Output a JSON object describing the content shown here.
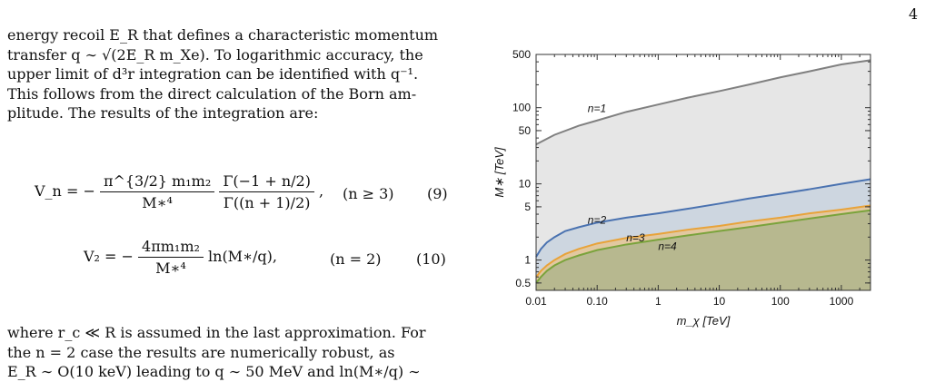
{
  "page_number": "4",
  "text": {
    "lines": [
      "energy recoil E_R that defines a characteristic momentum",
      "transfer q ∼ √(2E_R m_Xe). To logarithmic accuracy, the",
      "upper limit of d³r integration can be identified with q⁻¹.",
      "This follows from the direct calculation of the Born am-",
      "plitude. The results of the integration are:"
    ],
    "bottom_lines": [
      "where r_c ≪ R is assumed in the last approximation. For",
      "the n = 2 case the results are numerically robust, as",
      "E_R ∼ O(10 keV) leading to q ∼ 50 MeV and ln(M∗/q) ∼"
    ]
  },
  "equations": [
    {
      "lhs": "V_n = −",
      "frac1_num": "π^{3/2} m₁m₂",
      "frac1_den": "M∗⁴",
      "frac2_num": "Γ(−1 + n/2)",
      "frac2_den": "Γ((n + 1)/2)",
      "condition": "(n ≥ 3)",
      "number": "(9)"
    },
    {
      "lhs": "V₂ = −",
      "frac1_num": "4πm₁m₂",
      "frac1_den": "M∗⁴",
      "tail": "ln(M∗/q),",
      "condition": "(n = 2)",
      "number": "(10)"
    }
  ],
  "chart_data": {
    "type": "line",
    "xscale": "log",
    "yscale": "log",
    "xlabel": "m_χ [TeV]",
    "ylabel": "M∗ [TeV]",
    "xlim": [
      0.01,
      3000
    ],
    "ylim": [
      0.4,
      500
    ],
    "xticks": [
      "0.01",
      "0.10",
      "1",
      "10",
      "100",
      "1000"
    ],
    "yticks": [
      "0.5",
      "1",
      "5",
      "10",
      "50",
      "100",
      "500"
    ],
    "series": [
      {
        "name": "n=1",
        "color": "#808080",
        "fill": "#e6e6e6",
        "x": [
          0.01,
          0.02,
          0.05,
          0.1,
          0.3,
          1,
          3,
          10,
          30,
          100,
          300,
          1000,
          3000
        ],
        "y": [
          33,
          44,
          58,
          68,
          88,
          110,
          135,
          165,
          200,
          250,
          300,
          370,
          420
        ]
      },
      {
        "name": "n=2",
        "color": "#4a72b0",
        "fill": "#cdd6e0",
        "x": [
          0.01,
          0.012,
          0.015,
          0.02,
          0.03,
          0.05,
          0.1,
          0.3,
          1,
          3,
          10,
          30,
          100,
          300,
          1000,
          3000
        ],
        "y": [
          1.1,
          1.4,
          1.7,
          2.0,
          2.4,
          2.7,
          3.1,
          3.6,
          4.1,
          4.7,
          5.5,
          6.4,
          7.4,
          8.5,
          10,
          11.5
        ]
      },
      {
        "name": "n=3",
        "color": "#e8a33a",
        "fill": "#e2c8a0",
        "x": [
          0.01,
          0.012,
          0.015,
          0.02,
          0.03,
          0.05,
          0.1,
          0.3,
          1,
          3,
          10,
          30,
          100,
          300,
          1000,
          3000
        ],
        "y": [
          0.6,
          0.72,
          0.85,
          1.0,
          1.2,
          1.4,
          1.65,
          1.95,
          2.2,
          2.5,
          2.8,
          3.2,
          3.6,
          4.1,
          4.6,
          5.2
        ]
      },
      {
        "name": "n=4",
        "color": "#7aa33c",
        "fill": "#b7b88f",
        "x": [
          0.01,
          0.012,
          0.015,
          0.02,
          0.03,
          0.05,
          0.1,
          0.3,
          1,
          3,
          10,
          30,
          100,
          300,
          1000,
          3000
        ],
        "y": [
          0.5,
          0.6,
          0.72,
          0.85,
          1.0,
          1.15,
          1.35,
          1.6,
          1.85,
          2.1,
          2.4,
          2.7,
          3.1,
          3.5,
          4.0,
          4.5
        ]
      }
    ]
  }
}
